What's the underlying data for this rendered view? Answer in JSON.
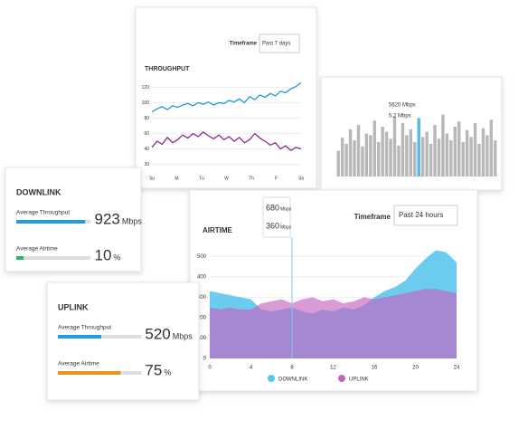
{
  "throughput": {
    "title": "THROUGHPUT",
    "timeframe_label": "Timeframe",
    "timeframe": "Past 7 days",
    "ylim": [
      10,
      130
    ],
    "yticks": [
      20,
      40,
      60,
      80,
      100,
      120
    ],
    "categories": [
      "Su",
      "M",
      "Tu",
      "W",
      "Th",
      "F",
      "Sa"
    ],
    "series": [
      {
        "color": "#1a9ad6",
        "values": [
          88,
          92,
          95,
          91,
          96,
          94,
          97,
          99,
          96,
          100,
          98,
          101,
          97,
          100,
          99,
          103,
          101,
          105,
          100,
          108,
          104,
          110,
          107,
          112,
          109,
          115,
          113,
          118,
          121,
          126
        ]
      },
      {
        "color": "#8e2a8c",
        "values": [
          42,
          50,
          46,
          55,
          48,
          52,
          58,
          54,
          60,
          56,
          62,
          57,
          53,
          58,
          52,
          56,
          50,
          55,
          48,
          52,
          60,
          54,
          50,
          45,
          48,
          40,
          44,
          38,
          42,
          40
        ]
      }
    ]
  },
  "histogram": {
    "callout": [
      "5620 Mbps",
      "5.2 Mbps"
    ],
    "ylim": [
      0,
      100
    ],
    "color": "#b8b8b8",
    "highlight_color": "#5bb8e6",
    "values": [
      30,
      45,
      38,
      55,
      42,
      60,
      35,
      50,
      48,
      65,
      40,
      58,
      52,
      44,
      70,
      36,
      62,
      48,
      55,
      40,
      68,
      46,
      52,
      38,
      60,
      44,
      72,
      50,
      42,
      58,
      64,
      40,
      54,
      46,
      62,
      38,
      56,
      48,
      66,
      42
    ]
  },
  "downlink": {
    "title": "DOWNLINK",
    "metrics": [
      {
        "label": "Average Throughput",
        "value": 923,
        "unit": "Mbps",
        "xlim": [
          0,
          1000
        ],
        "color": "#1e9ee0"
      },
      {
        "label": "Average Airtime",
        "value": 10,
        "unit": "%",
        "xlim": [
          0,
          100
        ],
        "color": "#2db36a"
      }
    ]
  },
  "uplink": {
    "title": "UPLINK",
    "metrics": [
      {
        "label": "Average Throughput",
        "value": 520,
        "unit": "Mbps",
        "xlim": [
          0,
          1000
        ],
        "color": "#1e9ee0"
      },
      {
        "label": "Average Airtime",
        "value": 75,
        "unit": "%",
        "xlim": [
          0,
          100
        ],
        "color": "#e8941a"
      }
    ]
  },
  "airtime": {
    "title": "AIRTIME",
    "timeframe_label": "Timeframe",
    "timeframe": "Past 24 hours",
    "xlim": [
      0,
      24
    ],
    "xticks": [
      0,
      4,
      8,
      12,
      16,
      20,
      24
    ],
    "ylim": [
      0,
      550
    ],
    "yticks": [
      0,
      100,
      200,
      300,
      400,
      500
    ],
    "x": [
      0,
      1,
      2,
      3,
      4,
      5,
      6,
      7,
      8,
      9,
      10,
      11,
      12,
      13,
      14,
      15,
      16,
      17,
      18,
      19,
      20,
      21,
      22,
      23,
      24
    ],
    "series": [
      {
        "name": "DOWNLINK",
        "color": "#5cc6ee",
        "values": [
          330,
          320,
          310,
          300,
          290,
          240,
          230,
          240,
          250,
          230,
          220,
          240,
          230,
          250,
          240,
          260,
          300,
          330,
          350,
          380,
          440,
          490,
          530,
          520,
          470
        ]
      },
      {
        "name": "UPLINK",
        "color": "#c464c0",
        "values": [
          250,
          240,
          250,
          240,
          240,
          270,
          280,
          290,
          270,
          290,
          300,
          280,
          290,
          270,
          280,
          300,
          290,
          300,
          310,
          320,
          330,
          340,
          340,
          330,
          320
        ]
      }
    ],
    "tooltip": [
      {
        "value": 680,
        "unit": "Mbps",
        "color": "#1e9ee0"
      },
      {
        "value": 360,
        "unit": "Mbps",
        "color": "#9a2a98"
      }
    ]
  }
}
